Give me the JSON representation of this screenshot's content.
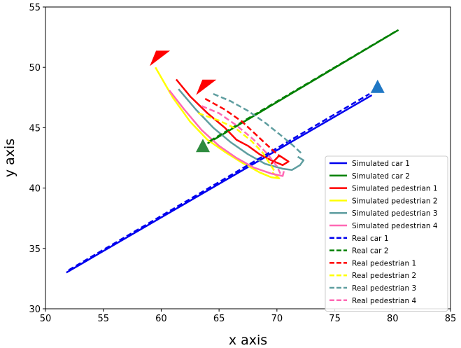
{
  "chart_data": {
    "type": "line",
    "title": "",
    "xlabel": "x axis",
    "ylabel": "y axis",
    "xlim": [
      50,
      85
    ],
    "ylim": [
      30,
      55
    ],
    "xticks": [
      "50",
      "55",
      "60",
      "65",
      "70",
      "75",
      "80",
      "85"
    ],
    "yticks": [
      "30",
      "35",
      "40",
      "45",
      "50",
      "55"
    ],
    "grid": false,
    "legend_position": "lower-right",
    "series": [
      {
        "name": "Simulated car 1",
        "color": "#0000ee",
        "style": "solid",
        "points": [
          [
            51.8,
            33.0
          ],
          [
            78.2,
            47.7
          ]
        ]
      },
      {
        "name": "Simulated car 2",
        "color": "#008000",
        "style": "solid",
        "points": [
          [
            64.0,
            43.7
          ],
          [
            80.5,
            53.1
          ]
        ]
      },
      {
        "name": "Simulated pedestrian 1",
        "color": "#ff0000",
        "style": "solid",
        "points": [
          [
            61.3,
            49.0
          ],
          [
            62.5,
            47.6
          ],
          [
            64.0,
            46.2
          ],
          [
            65.5,
            45.0
          ],
          [
            66.5,
            44.0
          ],
          [
            67.5,
            43.5
          ],
          [
            68.5,
            42.8
          ],
          [
            69.5,
            42.3
          ],
          [
            70.5,
            41.9
          ],
          [
            71.0,
            42.2
          ],
          [
            70.2,
            42.7
          ],
          [
            69.5,
            42.0
          ]
        ]
      },
      {
        "name": "Simulated pedestrian 2",
        "color": "#ffff00",
        "style": "solid",
        "points": [
          [
            59.5,
            50.0
          ],
          [
            61.0,
            47.5
          ],
          [
            62.5,
            45.5
          ],
          [
            64.0,
            44.0
          ],
          [
            65.5,
            43.0
          ],
          [
            67.0,
            42.1
          ],
          [
            68.5,
            41.3
          ],
          [
            69.5,
            40.9
          ],
          [
            70.2,
            40.8
          ],
          [
            69.6,
            41.3
          ]
        ]
      },
      {
        "name": "Simulated pedestrian 3",
        "color": "#5f9ea0",
        "style": "solid",
        "points": [
          [
            61.5,
            48.2
          ],
          [
            63.0,
            46.5
          ],
          [
            64.5,
            45.0
          ],
          [
            66.0,
            43.8
          ],
          [
            67.5,
            42.8
          ],
          [
            69.0,
            42.0
          ],
          [
            70.5,
            41.6
          ],
          [
            71.3,
            41.5
          ],
          [
            72.0,
            41.9
          ],
          [
            72.3,
            42.3
          ],
          [
            71.8,
            42.6
          ]
        ]
      },
      {
        "name": "Simulated pedestrian 4",
        "color": "#ff69b4",
        "style": "solid",
        "points": [
          [
            60.7,
            48.1
          ],
          [
            62.0,
            46.5
          ],
          [
            63.5,
            44.8
          ],
          [
            65.0,
            43.5
          ],
          [
            66.5,
            42.5
          ],
          [
            68.0,
            41.7
          ],
          [
            69.5,
            41.2
          ],
          [
            70.5,
            41.0
          ],
          [
            70.6,
            41.4
          ]
        ]
      },
      {
        "name": "Real car 1",
        "color": "#0000ee",
        "style": "dashed",
        "points": [
          [
            52.0,
            33.2
          ],
          [
            78.0,
            47.8
          ]
        ]
      },
      {
        "name": "Real car 2",
        "color": "#008000",
        "style": "dashed",
        "points": [
          [
            64.2,
            43.9
          ],
          [
            80.3,
            53.0
          ]
        ]
      },
      {
        "name": "Real pedestrian 1",
        "color": "#ff0000",
        "style": "dashed",
        "points": [
          [
            63.8,
            47.4
          ],
          [
            65.5,
            46.5
          ],
          [
            67.0,
            45.5
          ],
          [
            68.0,
            44.6
          ],
          [
            69.0,
            43.7
          ],
          [
            69.8,
            43.0
          ],
          [
            70.3,
            42.6
          ]
        ]
      },
      {
        "name": "Real pedestrian 2",
        "color": "#ffff00",
        "style": "dashed",
        "points": [
          [
            63.2,
            46.2
          ],
          [
            65.0,
            45.6
          ],
          [
            66.5,
            44.9
          ],
          [
            67.8,
            43.9
          ],
          [
            68.8,
            42.9
          ],
          [
            69.4,
            42.0
          ],
          [
            69.8,
            41.4
          ]
        ]
      },
      {
        "name": "Real pedestrian 3",
        "color": "#5f9ea0",
        "style": "dashed",
        "points": [
          [
            64.5,
            47.8
          ],
          [
            66.0,
            47.2
          ],
          [
            67.5,
            46.4
          ],
          [
            69.0,
            45.4
          ],
          [
            70.3,
            44.4
          ],
          [
            71.3,
            43.6
          ],
          [
            72.2,
            42.8
          ]
        ]
      },
      {
        "name": "Real pedestrian 4",
        "color": "#ff69b4",
        "style": "dashed",
        "points": [
          [
            63.5,
            46.8
          ],
          [
            65.0,
            46.2
          ],
          [
            66.5,
            45.2
          ],
          [
            68.0,
            44.0
          ],
          [
            69.2,
            42.8
          ],
          [
            70.0,
            41.8
          ],
          [
            70.3,
            41.2
          ]
        ]
      }
    ],
    "markers": [
      {
        "name": "red-arrow-marker-1",
        "shape": "triangle-left",
        "color": "#ff0000",
        "at": [
          59.8,
          50.8
        ]
      },
      {
        "name": "red-arrow-marker-2",
        "shape": "triangle-left",
        "color": "#ff0000",
        "at": [
          63.8,
          48.4
        ]
      },
      {
        "name": "green-arrow-marker",
        "shape": "triangle-up",
        "color": "#2e8b3e",
        "at": [
          63.6,
          43.5
        ]
      },
      {
        "name": "blue-arrow-marker",
        "shape": "triangle-up",
        "color": "#1f77c4",
        "at": [
          78.7,
          48.4
        ]
      }
    ]
  }
}
